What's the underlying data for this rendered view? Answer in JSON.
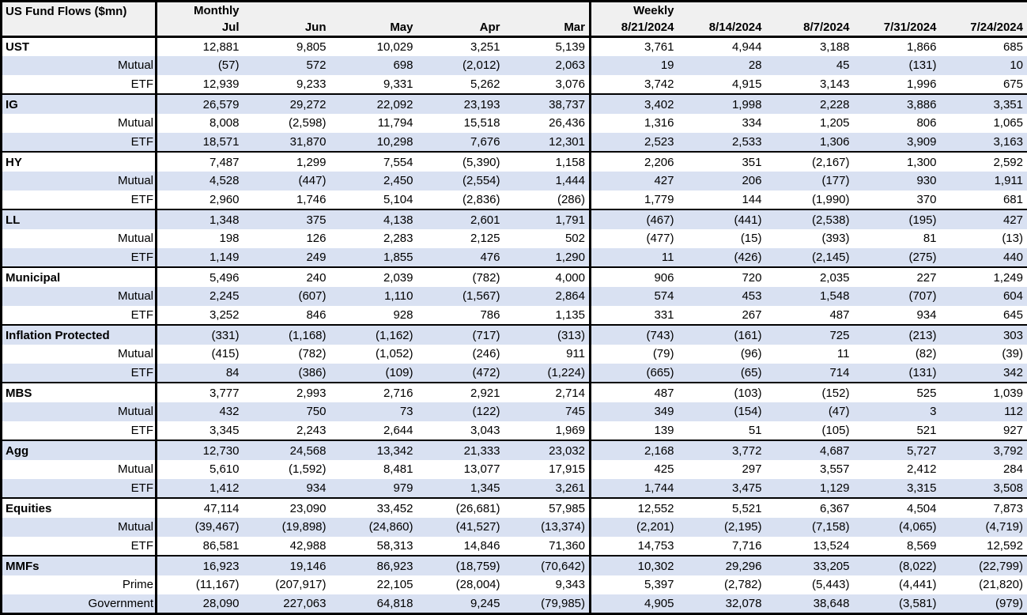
{
  "colors": {
    "stripe": "#d9e1f2",
    "header_background": "#f0f0f0",
    "border": "#000000",
    "text": "#000000",
    "row_background": "#ffffff"
  },
  "chart_data": {
    "type": "table",
    "title": "US Fund Flows ($mn)",
    "sections": [
      {
        "label": "Monthly",
        "columns": [
          "Jul",
          "Jun",
          "May",
          "Apr",
          "Mar"
        ]
      },
      {
        "label": "Weekly",
        "columns": [
          "8/21/2024",
          "8/14/2024",
          "8/7/2024",
          "7/31/2024",
          "7/24/2024"
        ]
      }
    ],
    "groups": [
      {
        "name": "UST",
        "rows": [
          {
            "label": "UST",
            "category": true,
            "monthly": [
              "12,881",
              "9,805",
              "10,029",
              "3,251",
              "5,139"
            ],
            "weekly": [
              "3,761",
              "4,944",
              "3,188",
              "1,866",
              "685"
            ]
          },
          {
            "label": "Mutual",
            "category": false,
            "monthly": [
              "(57)",
              "572",
              "698",
              "(2,012)",
              "2,063"
            ],
            "weekly": [
              "19",
              "28",
              "45",
              "(131)",
              "10"
            ]
          },
          {
            "label": "ETF",
            "category": false,
            "monthly": [
              "12,939",
              "9,233",
              "9,331",
              "5,262",
              "3,076"
            ],
            "weekly": [
              "3,742",
              "4,915",
              "3,143",
              "1,996",
              "675"
            ]
          }
        ]
      },
      {
        "name": "IG",
        "rows": [
          {
            "label": "IG",
            "category": true,
            "monthly": [
              "26,579",
              "29,272",
              "22,092",
              "23,193",
              "38,737"
            ],
            "weekly": [
              "3,402",
              "1,998",
              "2,228",
              "3,886",
              "3,351"
            ]
          },
          {
            "label": "Mutual",
            "category": false,
            "monthly": [
              "8,008",
              "(2,598)",
              "11,794",
              "15,518",
              "26,436"
            ],
            "weekly": [
              "1,316",
              "334",
              "1,205",
              "806",
              "1,065"
            ]
          },
          {
            "label": "ETF",
            "category": false,
            "monthly": [
              "18,571",
              "31,870",
              "10,298",
              "7,676",
              "12,301"
            ],
            "weekly": [
              "2,523",
              "2,533",
              "1,306",
              "3,909",
              "3,163"
            ]
          }
        ]
      },
      {
        "name": "HY",
        "rows": [
          {
            "label": "HY",
            "category": true,
            "monthly": [
              "7,487",
              "1,299",
              "7,554",
              "(5,390)",
              "1,158"
            ],
            "weekly": [
              "2,206",
              "351",
              "(2,167)",
              "1,300",
              "2,592"
            ]
          },
          {
            "label": "Mutual",
            "category": false,
            "monthly": [
              "4,528",
              "(447)",
              "2,450",
              "(2,554)",
              "1,444"
            ],
            "weekly": [
              "427",
              "206",
              "(177)",
              "930",
              "1,911"
            ]
          },
          {
            "label": "ETF",
            "category": false,
            "monthly": [
              "2,960",
              "1,746",
              "5,104",
              "(2,836)",
              "(286)"
            ],
            "weekly": [
              "1,779",
              "144",
              "(1,990)",
              "370",
              "681"
            ]
          }
        ]
      },
      {
        "name": "LL",
        "rows": [
          {
            "label": "LL",
            "category": true,
            "monthly": [
              "1,348",
              "375",
              "4,138",
              "2,601",
              "1,791"
            ],
            "weekly": [
              "(467)",
              "(441)",
              "(2,538)",
              "(195)",
              "427"
            ]
          },
          {
            "label": "Mutual",
            "category": false,
            "monthly": [
              "198",
              "126",
              "2,283",
              "2,125",
              "502"
            ],
            "weekly": [
              "(477)",
              "(15)",
              "(393)",
              "81",
              "(13)"
            ]
          },
          {
            "label": "ETF",
            "category": false,
            "monthly": [
              "1,149",
              "249",
              "1,855",
              "476",
              "1,290"
            ],
            "weekly": [
              "11",
              "(426)",
              "(2,145)",
              "(275)",
              "440"
            ]
          }
        ]
      },
      {
        "name": "Municipal",
        "rows": [
          {
            "label": "Municipal",
            "category": true,
            "monthly": [
              "5,496",
              "240",
              "2,039",
              "(782)",
              "4,000"
            ],
            "weekly": [
              "906",
              "720",
              "2,035",
              "227",
              "1,249"
            ]
          },
          {
            "label": "Mutual",
            "category": false,
            "monthly": [
              "2,245",
              "(607)",
              "1,110",
              "(1,567)",
              "2,864"
            ],
            "weekly": [
              "574",
              "453",
              "1,548",
              "(707)",
              "604"
            ]
          },
          {
            "label": "ETF",
            "category": false,
            "monthly": [
              "3,252",
              "846",
              "928",
              "786",
              "1,135"
            ],
            "weekly": [
              "331",
              "267",
              "487",
              "934",
              "645"
            ]
          }
        ]
      },
      {
        "name": "Inflation Protected",
        "rows": [
          {
            "label": "Inflation Protected",
            "category": true,
            "monthly": [
              "(331)",
              "(1,168)",
              "(1,162)",
              "(717)",
              "(313)"
            ],
            "weekly": [
              "(743)",
              "(161)",
              "725",
              "(213)",
              "303"
            ]
          },
          {
            "label": "Mutual",
            "category": false,
            "monthly": [
              "(415)",
              "(782)",
              "(1,052)",
              "(246)",
              "911"
            ],
            "weekly": [
              "(79)",
              "(96)",
              "11",
              "(82)",
              "(39)"
            ]
          },
          {
            "label": "ETF",
            "category": false,
            "monthly": [
              "84",
              "(386)",
              "(109)",
              "(472)",
              "(1,224)"
            ],
            "weekly": [
              "(665)",
              "(65)",
              "714",
              "(131)",
              "342"
            ]
          }
        ]
      },
      {
        "name": "MBS",
        "rows": [
          {
            "label": "MBS",
            "category": true,
            "monthly": [
              "3,777",
              "2,993",
              "2,716",
              "2,921",
              "2,714"
            ],
            "weekly": [
              "487",
              "(103)",
              "(152)",
              "525",
              "1,039"
            ]
          },
          {
            "label": "Mutual",
            "category": false,
            "monthly": [
              "432",
              "750",
              "73",
              "(122)",
              "745"
            ],
            "weekly": [
              "349",
              "(154)",
              "(47)",
              "3",
              "112"
            ]
          },
          {
            "label": "ETF",
            "category": false,
            "monthly": [
              "3,345",
              "2,243",
              "2,644",
              "3,043",
              "1,969"
            ],
            "weekly": [
              "139",
              "51",
              "(105)",
              "521",
              "927"
            ]
          }
        ]
      },
      {
        "name": "Agg",
        "rows": [
          {
            "label": "Agg",
            "category": true,
            "monthly": [
              "12,730",
              "24,568",
              "13,342",
              "21,333",
              "23,032"
            ],
            "weekly": [
              "2,168",
              "3,772",
              "4,687",
              "5,727",
              "3,792"
            ]
          },
          {
            "label": "Mutual",
            "category": false,
            "monthly": [
              "5,610",
              "(1,592)",
              "8,481",
              "13,077",
              "17,915"
            ],
            "weekly": [
              "425",
              "297",
              "3,557",
              "2,412",
              "284"
            ]
          },
          {
            "label": "ETF",
            "category": false,
            "monthly": [
              "1,412",
              "934",
              "979",
              "1,345",
              "3,261"
            ],
            "weekly": [
              "1,744",
              "3,475",
              "1,129",
              "3,315",
              "3,508"
            ]
          }
        ]
      },
      {
        "name": "Equities",
        "rows": [
          {
            "label": "Equities",
            "category": true,
            "monthly": [
              "47,114",
              "23,090",
              "33,452",
              "(26,681)",
              "57,985"
            ],
            "weekly": [
              "12,552",
              "5,521",
              "6,367",
              "4,504",
              "7,873"
            ]
          },
          {
            "label": "Mutual",
            "category": false,
            "monthly": [
              "(39,467)",
              "(19,898)",
              "(24,860)",
              "(41,527)",
              "(13,374)"
            ],
            "weekly": [
              "(2,201)",
              "(2,195)",
              "(7,158)",
              "(4,065)",
              "(4,719)"
            ]
          },
          {
            "label": "ETF",
            "category": false,
            "monthly": [
              "86,581",
              "42,988",
              "58,313",
              "14,846",
              "71,360"
            ],
            "weekly": [
              "14,753",
              "7,716",
              "13,524",
              "8,569",
              "12,592"
            ]
          }
        ]
      },
      {
        "name": "MMFs",
        "rows": [
          {
            "label": "MMFs",
            "category": true,
            "monthly": [
              "16,923",
              "19,146",
              "86,923",
              "(18,759)",
              "(70,642)"
            ],
            "weekly": [
              "10,302",
              "29,296",
              "33,205",
              "(8,022)",
              "(22,799)"
            ]
          },
          {
            "label": "Prime",
            "category": false,
            "monthly": [
              "(11,167)",
              "(207,917)",
              "22,105",
              "(28,004)",
              "9,343"
            ],
            "weekly": [
              "5,397",
              "(2,782)",
              "(5,443)",
              "(4,441)",
              "(21,820)"
            ]
          },
          {
            "label": "Government",
            "category": false,
            "monthly": [
              "28,090",
              "227,063",
              "64,818",
              "9,245",
              "(79,985)"
            ],
            "weekly": [
              "4,905",
              "32,078",
              "38,648",
              "(3,581)",
              "(979)"
            ]
          }
        ]
      }
    ]
  }
}
